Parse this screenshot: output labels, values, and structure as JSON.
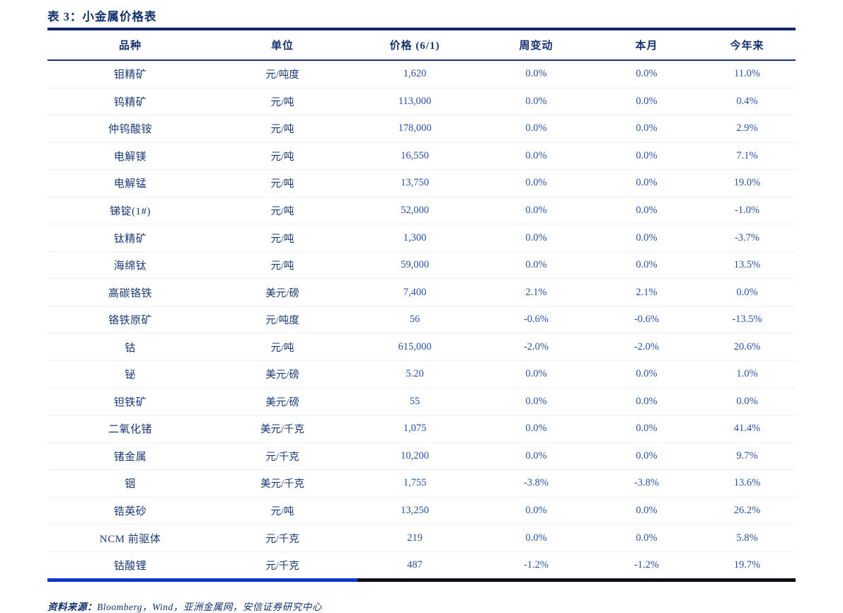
{
  "title": "表 3：小金属价格表",
  "colors": {
    "navy": "#14316B",
    "number_blue": "#2B52A0",
    "bottom_bar_blue": "#1136CC",
    "bottom_bar_dark": "#0B0B18"
  },
  "table": {
    "columns": [
      "品种",
      "单位",
      "价格 (6/1)",
      "周变动",
      "本月",
      "今年来"
    ],
    "rows": [
      [
        "钼精矿",
        "元/吨度",
        "1,620",
        "0.0%",
        "0.0%",
        "11.0%"
      ],
      [
        "钨精矿",
        "元/吨",
        "113,000",
        "0.0%",
        "0.0%",
        "0.4%"
      ],
      [
        "仲钨酸铵",
        "元/吨",
        "178,000",
        "0.0%",
        "0.0%",
        "2.9%"
      ],
      [
        "电解镁",
        "元/吨",
        "16,550",
        "0.0%",
        "0.0%",
        "7.1%"
      ],
      [
        "电解锰",
        "元/吨",
        "13,750",
        "0.0%",
        "0.0%",
        "19.0%"
      ],
      [
        "锑锭(1#)",
        "元/吨",
        "52,000",
        "0.0%",
        "0.0%",
        "-1.0%"
      ],
      [
        "钛精矿",
        "元/吨",
        "1,300",
        "0.0%",
        "0.0%",
        "-3.7%"
      ],
      [
        "海绵钛",
        "元/吨",
        "59,000",
        "0.0%",
        "0.0%",
        "13.5%"
      ],
      [
        "高碳铬铁",
        "美元/磅",
        "7,400",
        "2.1%",
        "2.1%",
        "0.0%"
      ],
      [
        "铬铁原矿",
        "元/吨度",
        "56",
        "-0.6%",
        "-0.6%",
        "-13.5%"
      ],
      [
        "钴",
        "元/吨",
        "615,000",
        "-2.0%",
        "-2.0%",
        "20.6%"
      ],
      [
        "铋",
        "美元/磅",
        "5.20",
        "0.0%",
        "0.0%",
        "1.0%"
      ],
      [
        "钽铁矿",
        "美元/磅",
        "55",
        "0.0%",
        "0.0%",
        "0.0%"
      ],
      [
        "二氧化锗",
        "美元/千克",
        "1,075",
        "0.0%",
        "0.0%",
        "41.4%"
      ],
      [
        "锗金属",
        "元/千克",
        "10,200",
        "0.0%",
        "0.0%",
        "9.7%"
      ],
      [
        "铟",
        "美元/千克",
        "1,755",
        "-3.8%",
        "-3.8%",
        "13.6%"
      ],
      [
        "锆英砂",
        "元/吨",
        "13,250",
        "0.0%",
        "0.0%",
        "26.2%"
      ],
      [
        "NCM 前驱体",
        "元/千克",
        "219",
        "0.0%",
        "0.0%",
        "5.8%"
      ],
      [
        "钴酸锂",
        "元/千克",
        "487",
        "-1.2%",
        "-1.2%",
        "19.7%"
      ]
    ]
  },
  "footer": {
    "label": "资料来源：",
    "sources": "Bloomberg，Wind，亚洲金属网，安信证券研究中心"
  }
}
